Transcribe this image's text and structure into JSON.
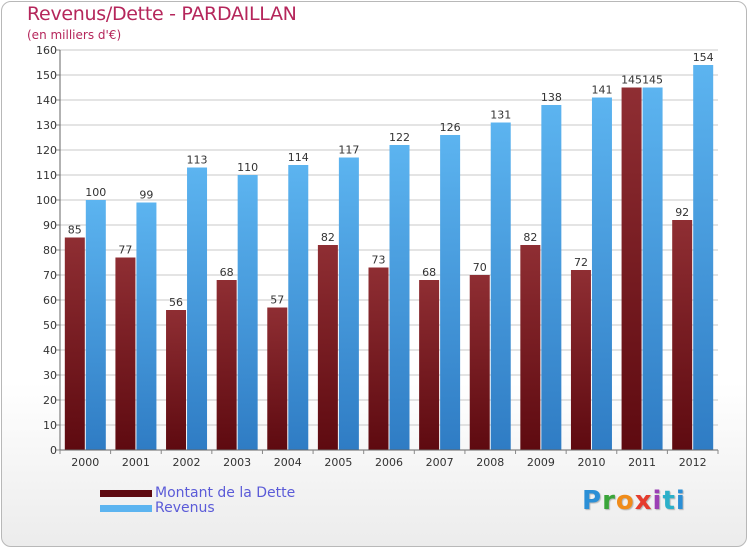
{
  "header": {
    "title": "Revenus/Dette - PARDAILLAN",
    "subtitle": "(en milliers d'€)"
  },
  "logo": {
    "text": "Proxiti"
  },
  "colors": {
    "dette_dark": "#5e0a10",
    "dette_light": "#8f2e33",
    "revenus_dark": "#2f7cc4",
    "revenus_light": "#5cb4f0",
    "grid": "#c8c8c8",
    "axis_text": "#333333"
  },
  "chart_data": {
    "type": "bar",
    "title": "Revenus/Dette - PARDAILLAN",
    "subtitle": "(en milliers d'€)",
    "categories": [
      "2000",
      "2001",
      "2002",
      "2003",
      "2004",
      "2005",
      "2006",
      "2007",
      "2008",
      "2009",
      "2010",
      "2011",
      "2012"
    ],
    "series": [
      {
        "name": "Montant de la Dette",
        "values": [
          85,
          77,
          56,
          68,
          57,
          82,
          73,
          68,
          70,
          82,
          72,
          145,
          92
        ]
      },
      {
        "name": "Revenus",
        "values": [
          100,
          99,
          113,
          110,
          114,
          117,
          122,
          126,
          131,
          138,
          141,
          145,
          154
        ]
      }
    ],
    "ylim": [
      0,
      160
    ],
    "yticks": [
      0,
      10,
      20,
      30,
      40,
      50,
      60,
      70,
      80,
      90,
      100,
      110,
      120,
      130,
      140,
      150,
      160
    ],
    "grid": true,
    "legend": "bottom-left"
  }
}
